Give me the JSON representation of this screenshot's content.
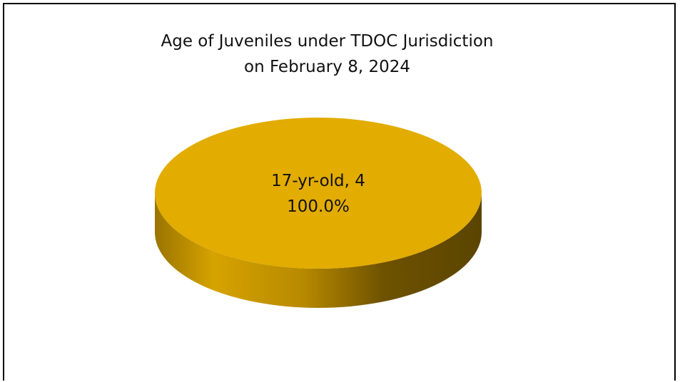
{
  "chart_data": {
    "type": "pie",
    "title": "Age of Juveniles under TDOC Jurisdiction",
    "subtitle": "on February 8, 2024",
    "slices": [
      {
        "label": "17-yr-old",
        "value": 4,
        "percent": "100.0%",
        "color": "#E2AC00"
      }
    ],
    "style": "3d",
    "legend": "none"
  }
}
